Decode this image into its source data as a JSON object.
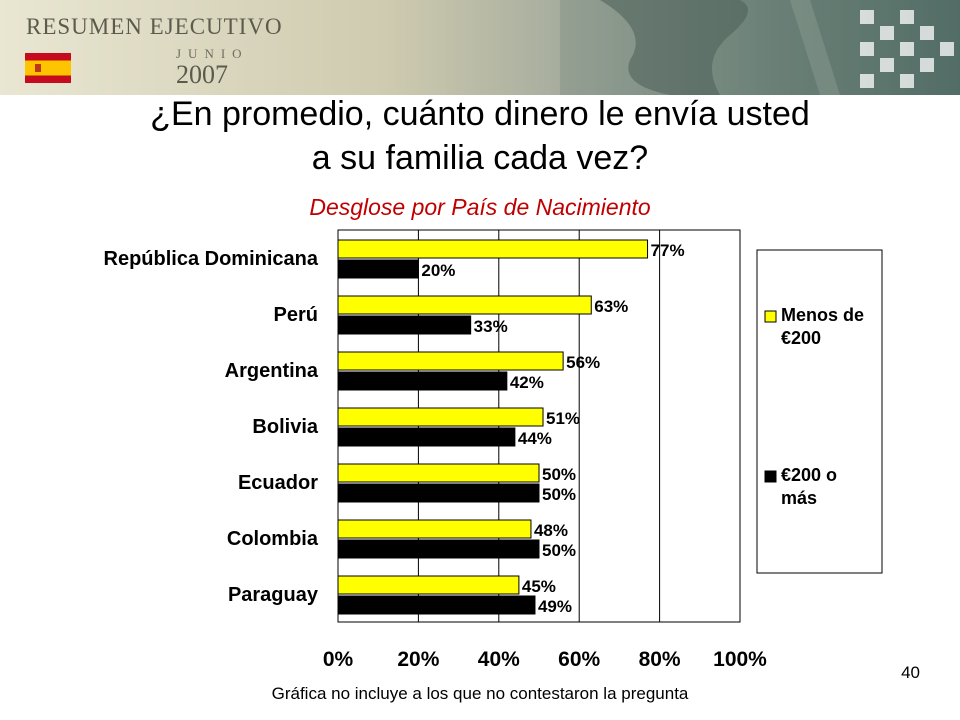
{
  "banner": {
    "title": "RESUMEN EJECUTIVO",
    "month": "JUNIO",
    "year": "2007",
    "flag_colors": {
      "red": "#c60b1e",
      "yellow": "#ffc400"
    }
  },
  "slide": {
    "title_line1": "¿En promedio, cuánto dinero le envía usted",
    "title_line2": "a su familia cada vez?",
    "subtitle": "Desglose por País de Nacimiento",
    "subtitle_color": "#c00000",
    "page_number": "40",
    "footnote": "Gráfica no incluye a los que no contestaron la pregunta"
  },
  "chart_data": {
    "type": "bar",
    "orientation": "horizontal",
    "categories": [
      "República Dominicana",
      "Perú",
      "Argentina",
      "Bolivia",
      "Ecuador",
      "Colombia",
      "Paraguay"
    ],
    "series": [
      {
        "name": "Menos de €200",
        "legend_lines": [
          "Menos de",
          "€200"
        ],
        "color": "#ffff00",
        "values": [
          77,
          63,
          56,
          51,
          50,
          48,
          45
        ],
        "labels": [
          "77%",
          "63%",
          "56%",
          "51%",
          "50%",
          "48%",
          "45%"
        ]
      },
      {
        "name": "€200 o más",
        "legend_lines": [
          "€200 o",
          "más"
        ],
        "color": "#000000",
        "values": [
          20,
          33,
          42,
          44,
          50,
          50,
          49
        ],
        "labels": [
          "20%",
          "33%",
          "42%",
          "44%",
          "50%",
          "50%",
          "49%"
        ]
      }
    ],
    "xlim": [
      0,
      100
    ],
    "xticks": [
      "0%",
      "20%",
      "40%",
      "60%",
      "80%",
      "100%"
    ],
    "grid": "vertical gridlines",
    "legend_position": "right"
  }
}
